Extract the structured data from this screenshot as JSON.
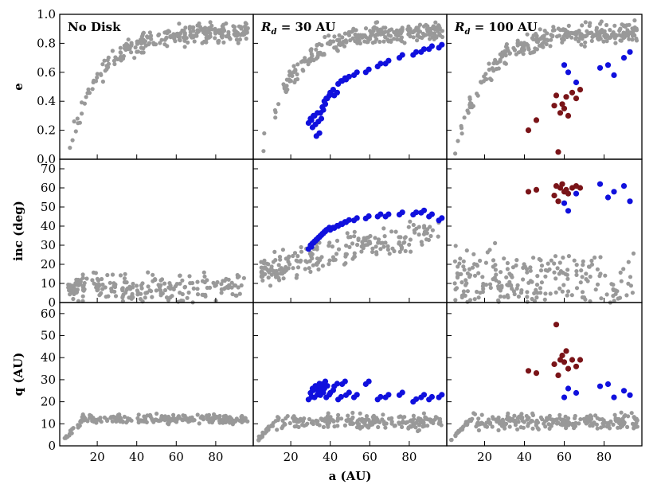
{
  "chart_data": {
    "type": "scatter",
    "xlabel": "a (AU)",
    "x_ticks": [
      20,
      40,
      60,
      80
    ],
    "xlim": [
      1,
      99
    ],
    "columns": [
      {
        "label_prefix": "No Disk",
        "label_suffix": ""
      },
      {
        "label_prefix": "R",
        "label_sub": "d",
        "label_suffix": " = 30 AU"
      },
      {
        "label_prefix": "R",
        "label_sub": "d",
        "label_suffix": " = 100 AU"
      }
    ],
    "rows": [
      {
        "ylabel": "e",
        "ylim": [
          0,
          1.0
        ],
        "y_ticks": [
          0.0,
          0.2,
          0.4,
          0.6,
          0.8,
          1.0
        ],
        "y_tick_labels": [
          "0.0",
          "0.2",
          "0.4",
          "0.6",
          "0.8",
          "1.0"
        ]
      },
      {
        "ylabel": "inc (deg)",
        "ylim": [
          0,
          75
        ],
        "y_ticks": [
          0,
          10,
          20,
          30,
          40,
          50,
          60,
          70
        ],
        "y_tick_labels": [
          "0",
          "10",
          "20",
          "30",
          "40",
          "50",
          "60",
          "70"
        ]
      },
      {
        "ylabel": "q (AU)",
        "ylim": [
          0,
          65
        ],
        "y_ticks": [
          0,
          10,
          20,
          30,
          40,
          50,
          60
        ],
        "y_tick_labels": [
          "0",
          "10",
          "20",
          "30",
          "40",
          "50",
          "60"
        ]
      }
    ],
    "colors": {
      "background": "#999999",
      "captured": "#1010dd",
      "captured_far": "#7a1418"
    },
    "series": {
      "blue_30": {
        "a": [
          29,
          30,
          31,
          32,
          33,
          34,
          35,
          36,
          37,
          38,
          40,
          42,
          44,
          46,
          48,
          52,
          58,
          64,
          68,
          75,
          82,
          86,
          90,
          95
        ],
        "e": [
          0.25,
          0.28,
          0.22,
          0.3,
          0.16,
          0.26,
          0.32,
          0.36,
          0.4,
          0.42,
          0.46,
          0.44,
          0.52,
          0.54,
          0.55,
          0.58,
          0.6,
          0.64,
          0.66,
          0.7,
          0.72,
          0.74,
          0.76,
          0.77
        ],
        "inc": [
          28,
          30,
          31,
          32,
          33,
          34,
          35,
          36,
          37,
          38,
          38,
          39,
          40,
          41,
          42,
          43,
          44,
          45,
          45,
          46,
          46,
          47,
          45,
          43
        ],
        "q": [
          21,
          24,
          26,
          22,
          27,
          25,
          23,
          28,
          26,
          22,
          24,
          27,
          21,
          28,
          23,
          22,
          28,
          21,
          22,
          23,
          20,
          22,
          21,
          22
        ]
      },
      "blue_100": {
        "a": [
          60,
          62,
          66,
          78,
          82,
          85,
          90,
          93
        ],
        "e": [
          0.65,
          0.6,
          0.53,
          0.63,
          0.65,
          0.58,
          0.7,
          0.74
        ],
        "inc": [
          52,
          48,
          57,
          62,
          55,
          58,
          61,
          53
        ],
        "q": [
          22,
          26,
          24,
          27,
          28,
          22,
          25,
          23
        ]
      },
      "red_100": {
        "a": [
          42,
          46,
          55,
          56,
          57,
          58,
          59,
          60,
          61,
          62,
          64,
          66,
          68
        ],
        "e": [
          0.2,
          0.27,
          0.37,
          0.44,
          0.05,
          0.32,
          0.38,
          0.35,
          0.43,
          0.3,
          0.46,
          0.42,
          0.48
        ],
        "inc": [
          58,
          59,
          56,
          61,
          53,
          60,
          62,
          58,
          59,
          57,
          60,
          61,
          60
        ],
        "q": [
          34,
          33,
          37,
          55,
          32,
          39,
          41,
          38,
          43,
          35,
          39,
          36,
          39
        ]
      }
    }
  }
}
